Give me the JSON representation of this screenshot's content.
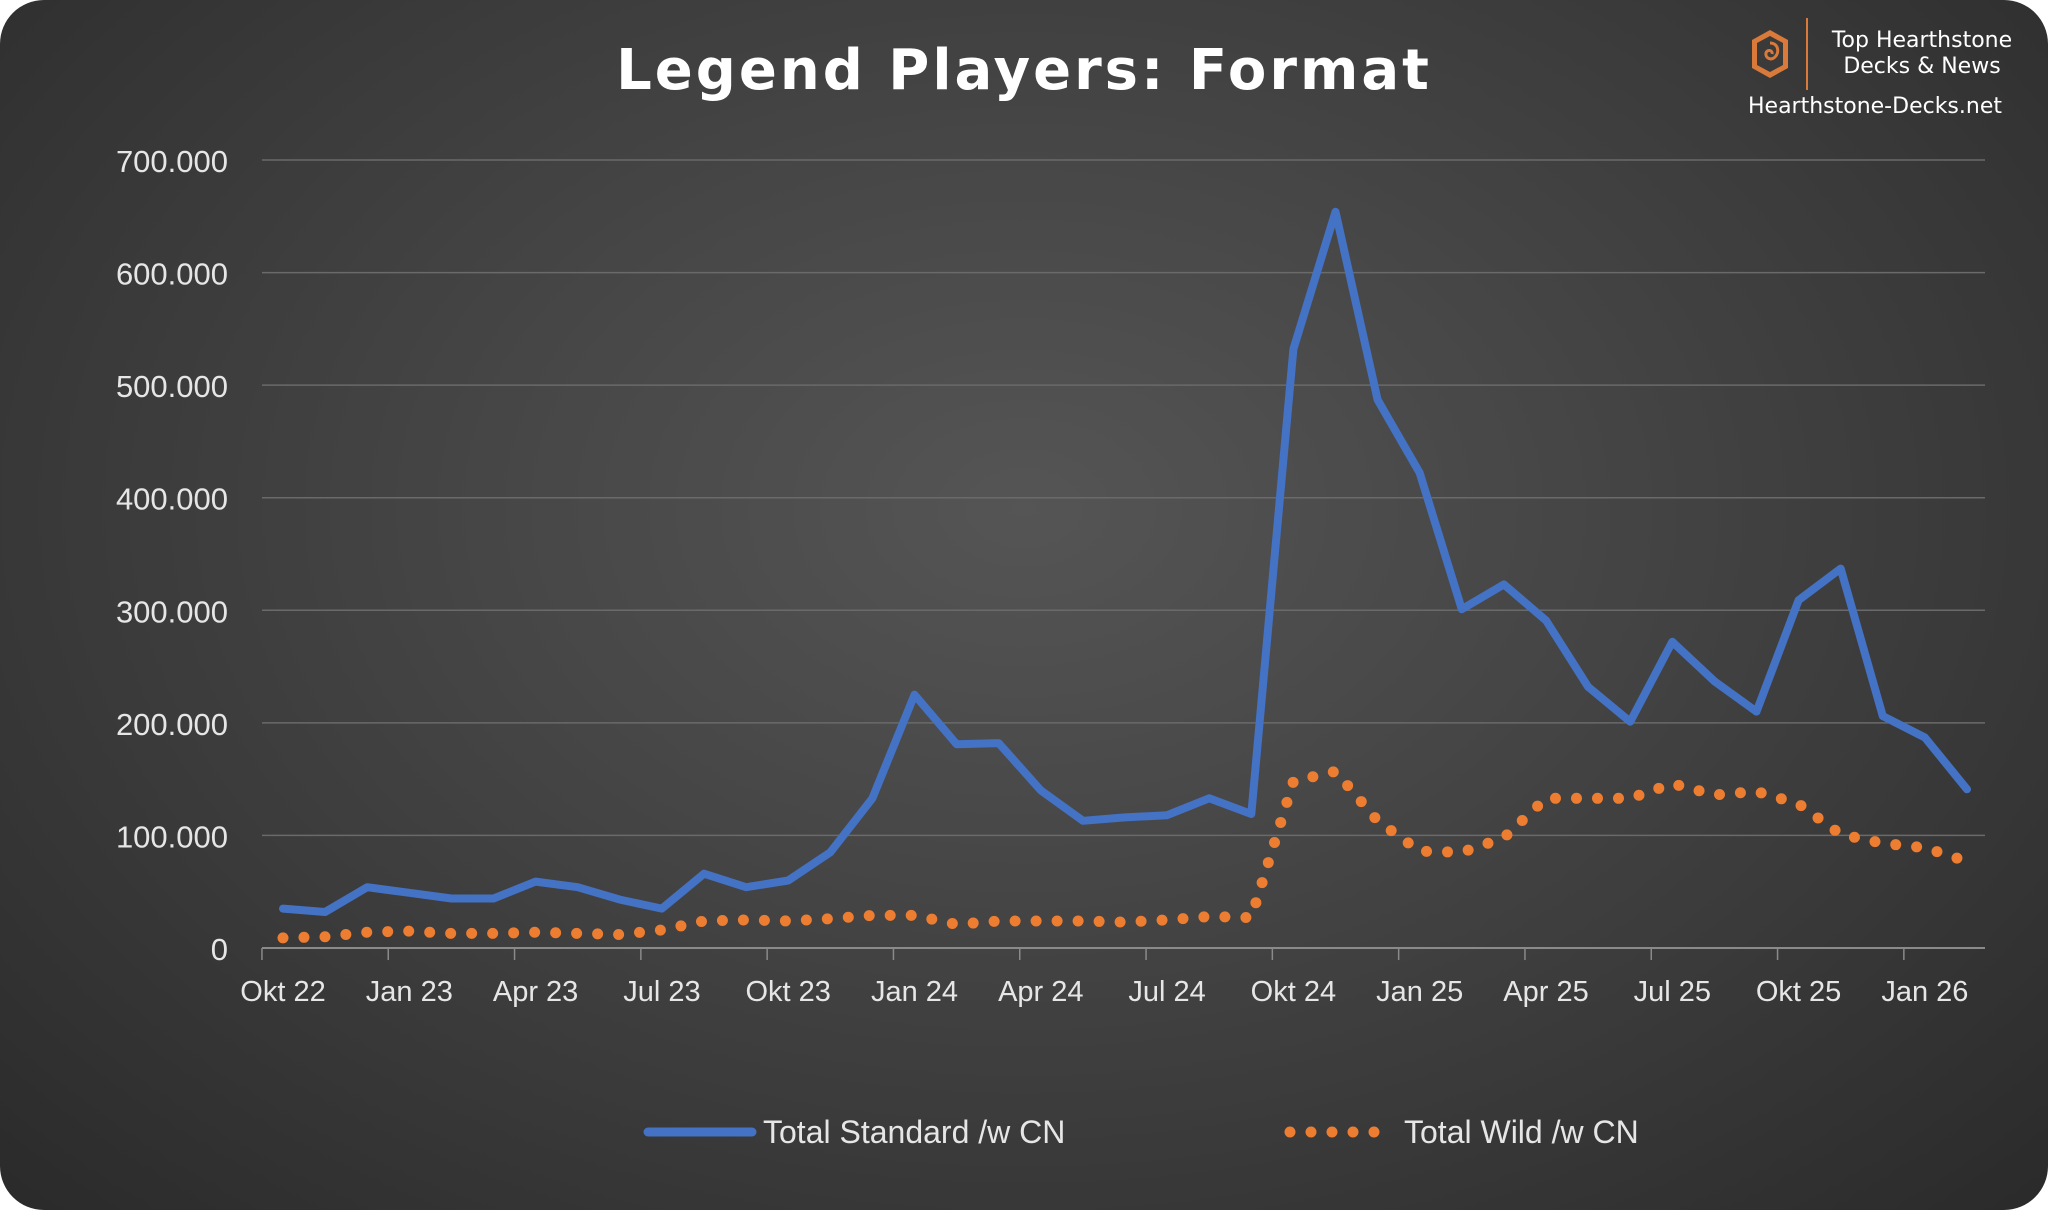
{
  "header": {
    "title": "Legend Players: Format"
  },
  "brand": {
    "line1": "Top Hearthstone",
    "line2": "Decks & News",
    "site": "Hearthstone-Decks.net",
    "accent": "#d97a3a"
  },
  "chart_data": {
    "type": "line",
    "title": "Legend Players: Format",
    "xlabel": "",
    "ylabel": "",
    "ylim": [
      0,
      700000
    ],
    "y_ticks": [
      0,
      100000,
      200000,
      300000,
      400000,
      500000,
      600000,
      700000
    ],
    "y_tick_labels": [
      "0",
      "100.000",
      "200.000",
      "300.000",
      "400.000",
      "500.000",
      "600.000",
      "700.000"
    ],
    "x_tick_labels": [
      "Okt 22",
      "Jan 23",
      "Apr 23",
      "Jul 23",
      "Okt 23",
      "Jan 24",
      "Apr 24",
      "Jul 24",
      "Okt 24",
      "Jan 25",
      "Apr 25",
      "Jul 25",
      "Okt 25",
      "Jan 26"
    ],
    "grid": true,
    "legend_position": "bottom",
    "x": [
      "Okt 22",
      "Nov 22",
      "Dez 22",
      "Jan 23",
      "Feb 23",
      "Mär 23",
      "Apr 23",
      "Mai 23",
      "Jun 23",
      "Jul 23",
      "Aug 23",
      "Sep 23",
      "Okt 23",
      "Nov 23",
      "Dez 23",
      "Jan 24",
      "Feb 24",
      "Mär 24",
      "Apr 24",
      "Mai 24",
      "Jun 24",
      "Jul 24",
      "Aug 24",
      "Sep 24",
      "Okt 24",
      "Nov 24",
      "Dez 24",
      "Jan 25",
      "Feb 25",
      "Mär 25",
      "Apr 25",
      "Mai 25",
      "Jun 25",
      "Jul 25",
      "Aug 25",
      "Sep 25",
      "Okt 25",
      "Nov 25",
      "Dez 25",
      "Jan 26",
      "Feb 26"
    ],
    "series": [
      {
        "name": "Total Standard /w CN",
        "color": "#4472c4",
        "style": "solid",
        "values": [
          35000,
          32000,
          54000,
          49000,
          44000,
          44000,
          59000,
          54000,
          43000,
          35000,
          66000,
          54000,
          60000,
          85000,
          133000,
          225000,
          181000,
          182000,
          140000,
          113000,
          116000,
          118000,
          133000,
          119000,
          532000,
          654000,
          487000,
          422000,
          301000,
          323000,
          291000,
          232000,
          201000,
          272000,
          237000,
          210000,
          309000,
          337000,
          206000,
          187000,
          141000
        ]
      },
      {
        "name": "Total Wild /w CN",
        "color": "#ed7d31",
        "style": "dotted",
        "values": [
          9000,
          10000,
          14000,
          15000,
          13000,
          13000,
          14000,
          13000,
          12000,
          16000,
          24000,
          25000,
          24000,
          26000,
          29000,
          29000,
          21000,
          24000,
          24000,
          24000,
          23000,
          25000,
          28000,
          27000,
          148000,
          157000,
          113000,
          86000,
          85000,
          98000,
          133000,
          133000,
          133000,
          146000,
          136000,
          139000,
          128000,
          101000,
          93000,
          89000,
          77000
        ]
      }
    ]
  }
}
